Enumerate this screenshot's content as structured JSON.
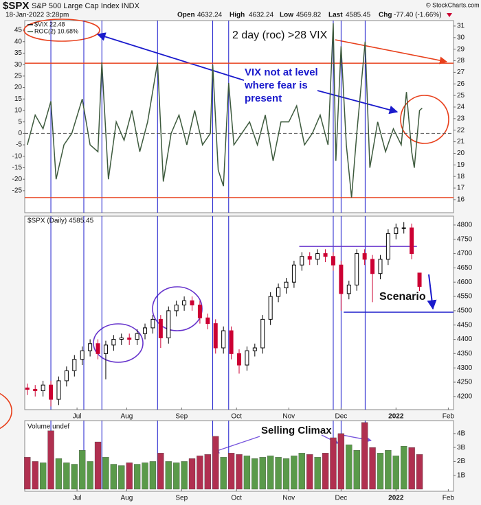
{
  "header": {
    "symbol": "$SPX",
    "name": "S&P 500 Large Cap Index INDX",
    "date": "18-Jan-2022 3:28pm",
    "open_label": "Open",
    "open": 4632.24,
    "high_label": "High",
    "high": 4632.24,
    "low_label": "Low",
    "low": 4569.82,
    "last_label": "Last",
    "last": 4585.45,
    "chg_label": "Chg",
    "chg": "-77.40 (-1.66%)",
    "source": "© StockCharts.com"
  },
  "chart_data": [
    {
      "type": "line",
      "symbol_label": "$VIX 22.48",
      "series": [
        {
          "name": "ROC(2) 10.68%",
          "color": "#3d5a3d",
          "values": [
            -5,
            8,
            2,
            14,
            -20,
            -5,
            0,
            15,
            -5,
            -8,
            31,
            -20,
            5,
            -3,
            10,
            -8,
            5,
            31,
            -21,
            0,
            8,
            -5,
            10,
            -5,
            0,
            30,
            -16,
            -23,
            22,
            -5,
            0,
            5,
            -5,
            8,
            -12,
            5,
            5,
            12,
            -5,
            0,
            8,
            -5,
            48,
            -12,
            38,
            -5,
            -28,
            0,
            40,
            -15,
            5,
            -8,
            2,
            -5,
            18,
            -8,
            -15,
            10,
            11
          ]
        }
      ],
      "x": [
        0,
        3,
        6,
        9,
        11,
        14,
        17,
        21,
        24,
        27,
        28.5,
        31,
        34,
        37,
        40,
        43,
        46,
        49.8,
        52,
        55,
        58,
        61,
        64,
        67,
        70,
        70.9,
        73,
        75,
        77,
        79,
        82,
        85,
        88,
        91,
        94,
        97,
        100,
        103,
        106,
        109,
        112,
        115,
        117,
        118,
        120,
        122,
        124,
        126,
        129.2,
        131,
        134,
        137,
        140,
        143,
        145,
        147,
        148,
        150,
        151
      ],
      "xlim": [
        -1,
        163
      ],
      "ylim": [
        -34.6,
        49.2
      ],
      "yticks": [
        -25,
        -20,
        -15,
        -10,
        -5,
        0,
        5,
        10,
        15,
        20,
        25,
        30,
        35,
        40,
        45
      ],
      "y2lim": [
        14.87,
        31.47
      ],
      "y2ticks": [
        16,
        17,
        18,
        19,
        20,
        21,
        22,
        23,
        24,
        25,
        26,
        27,
        28,
        29,
        30,
        31
      ],
      "baseline": 0,
      "reference_lines": [
        {
          "value": 30.6,
          "color": "#e8401c"
        },
        {
          "value": -28,
          "color": "#e8401c"
        }
      ],
      "vlines": [
        9,
        21.6,
        28.5,
        49.8,
        70.9,
        77,
        117,
        120,
        129.2
      ],
      "vline_color": "#1a1acc",
      "annotations": [
        {
          "text": "2 day (roc) >28 VIX",
          "color": "#e8401c"
        },
        {
          "text": "VIX not at level where fear is present",
          "color": "#1a1acc"
        }
      ]
    },
    {
      "type": "candlestick",
      "title": "$SPX (Daily) 4585.45",
      "x": [
        0,
        3,
        6,
        9,
        12,
        15,
        18,
        21,
        24,
        27,
        30,
        33,
        36,
        39,
        42,
        45,
        48,
        51,
        54,
        57,
        60,
        63,
        66,
        69,
        72,
        75,
        78,
        81,
        84,
        87,
        90,
        93,
        96,
        99,
        102,
        105,
        108,
        111,
        114,
        117,
        120,
        123,
        126,
        129,
        132,
        135,
        138,
        141,
        144,
        147,
        150
      ],
      "open": [
        4230,
        4225,
        4220,
        4240,
        4190,
        4255,
        4290,
        4330,
        4360,
        4385,
        4350,
        4380,
        4400,
        4405,
        4400,
        4420,
        4440,
        4470,
        4405,
        4500,
        4520,
        4535,
        4520,
        4475,
        4455,
        4370,
        4430,
        4350,
        4310,
        4360,
        4370,
        4470,
        4550,
        4580,
        4600,
        4660,
        4690,
        4680,
        4700,
        4690,
        4660,
        4560,
        4590,
        4700,
        4680,
        4630,
        4680,
        4770,
        4790,
        4790,
        4632
      ],
      "high": [
        4245,
        4240,
        4255,
        4255,
        4270,
        4305,
        4345,
        4375,
        4400,
        4400,
        4395,
        4415,
        4420,
        4420,
        4435,
        4455,
        4485,
        4485,
        4515,
        4535,
        4550,
        4550,
        4535,
        4490,
        4470,
        4445,
        4445,
        4365,
        4375,
        4385,
        4485,
        4565,
        4595,
        4615,
        4675,
        4705,
        4705,
        4715,
        4715,
        4705,
        4675,
        4605,
        4715,
        4715,
        4695,
        4695,
        4785,
        4805,
        4810,
        4805,
        4632
      ],
      "low": [
        4205,
        4200,
        4200,
        4165,
        4170,
        4235,
        4270,
        4310,
        4340,
        4330,
        4260,
        4360,
        4380,
        4380,
        4380,
        4400,
        4420,
        4370,
        4385,
        4480,
        4500,
        4500,
        4455,
        4435,
        4350,
        4350,
        4330,
        4280,
        4290,
        4340,
        4350,
        4450,
        4530,
        4560,
        4580,
        4640,
        4660,
        4660,
        4670,
        4640,
        4500,
        4540,
        4570,
        4660,
        4530,
        4610,
        4660,
        4750,
        4770,
        4680,
        4569
      ],
      "close": [
        4225,
        4220,
        4240,
        4190,
        4255,
        4290,
        4330,
        4360,
        4385,
        4350,
        4380,
        4400,
        4405,
        4400,
        4420,
        4440,
        4470,
        4405,
        4500,
        4520,
        4535,
        4520,
        4475,
        4455,
        4370,
        4430,
        4350,
        4310,
        4360,
        4370,
        4470,
        4550,
        4580,
        4600,
        4660,
        4690,
        4680,
        4700,
        4690,
        4660,
        4560,
        4590,
        4700,
        4680,
        4630,
        4680,
        4770,
        4790,
        4790,
        4700,
        4585
      ],
      "up_color": "#000000",
      "down_color": "#cc0033",
      "xlim": [
        -1,
        163
      ],
      "ylim": [
        4154,
        4831
      ],
      "yticks": [
        4200,
        4250,
        4300,
        4350,
        4400,
        4450,
        4500,
        4550,
        4600,
        4650,
        4700,
        4750,
        4800
      ],
      "xticks": [
        {
          "value": 19,
          "label": "Jul"
        },
        {
          "value": 38,
          "label": "Aug"
        },
        {
          "value": 59,
          "label": "Sep"
        },
        {
          "value": 80,
          "label": "Oct"
        },
        {
          "value": 100,
          "label": "Nov"
        },
        {
          "value": 120,
          "label": "Dec"
        },
        {
          "value": 141,
          "label": "2022"
        },
        {
          "value": 161,
          "label": "Feb"
        }
      ],
      "levels": [
        {
          "value": 4725,
          "from": 104,
          "to": 149,
          "color": "#6633cc"
        },
        {
          "value": 4495,
          "from": 121,
          "to": 163,
          "color": "#1a1acc"
        }
      ],
      "annotations": [
        {
          "text": "Scenario",
          "color": "#1a1acc"
        }
      ]
    },
    {
      "type": "bar",
      "title": "Volume undef",
      "x": [
        0,
        3,
        6,
        9,
        12,
        15,
        18,
        21,
        24,
        27,
        30,
        33,
        36,
        39,
        42,
        45,
        48,
        51,
        54,
        57,
        60,
        63,
        66,
        69,
        72,
        75,
        78,
        81,
        84,
        87,
        90,
        93,
        96,
        99,
        102,
        105,
        108,
        111,
        114,
        117,
        120,
        123,
        126,
        129,
        132,
        135,
        138,
        141,
        144,
        147,
        150
      ],
      "values": [
        2300000000,
        2000000000,
        1900000000,
        4200000000,
        2200000000,
        1900000000,
        1800000000,
        2800000000,
        2000000000,
        3400000000,
        2300000000,
        1800000000,
        1700000000,
        1900000000,
        1800000000,
        1900000000,
        2000000000,
        2600000000,
        2000000000,
        1900000000,
        2000000000,
        2200000000,
        2400000000,
        2500000000,
        3800000000,
        2300000000,
        2600000000,
        2500000000,
        2400000000,
        2200000000,
        2300000000,
        2400000000,
        2300000000,
        2200000000,
        2400000000,
        2600000000,
        2500000000,
        2300000000,
        2600000000,
        3700000000,
        4000000000,
        3200000000,
        2800000000,
        4800000000,
        3000000000,
        2600000000,
        2800000000,
        2400000000,
        3100000000,
        3000000000,
        2500000000
      ],
      "up_color": "#5a9a4a",
      "down_color": "#b03050",
      "xlim": [
        -1,
        163
      ],
      "ylim": [
        0,
        4930000000
      ],
      "yticks": [
        {
          "value": 1000000000,
          "label": "1B"
        },
        {
          "value": 2000000000,
          "label": "2B"
        },
        {
          "value": 3000000000,
          "label": "3B"
        },
        {
          "value": 4000000000,
          "label": "4B"
        }
      ],
      "xticks": [
        {
          "value": 19,
          "label": "Jul"
        },
        {
          "value": 38,
          "label": "Aug"
        },
        {
          "value": 59,
          "label": "Sep"
        },
        {
          "value": 80,
          "label": "Oct"
        },
        {
          "value": 100,
          "label": "Nov"
        },
        {
          "value": 120,
          "label": "Dec"
        },
        {
          "value": 141,
          "label": "2022"
        },
        {
          "value": 161,
          "label": "Feb"
        }
      ],
      "annotations": [
        {
          "text": "Selling Climax",
          "color": "#7755dd"
        }
      ]
    }
  ]
}
